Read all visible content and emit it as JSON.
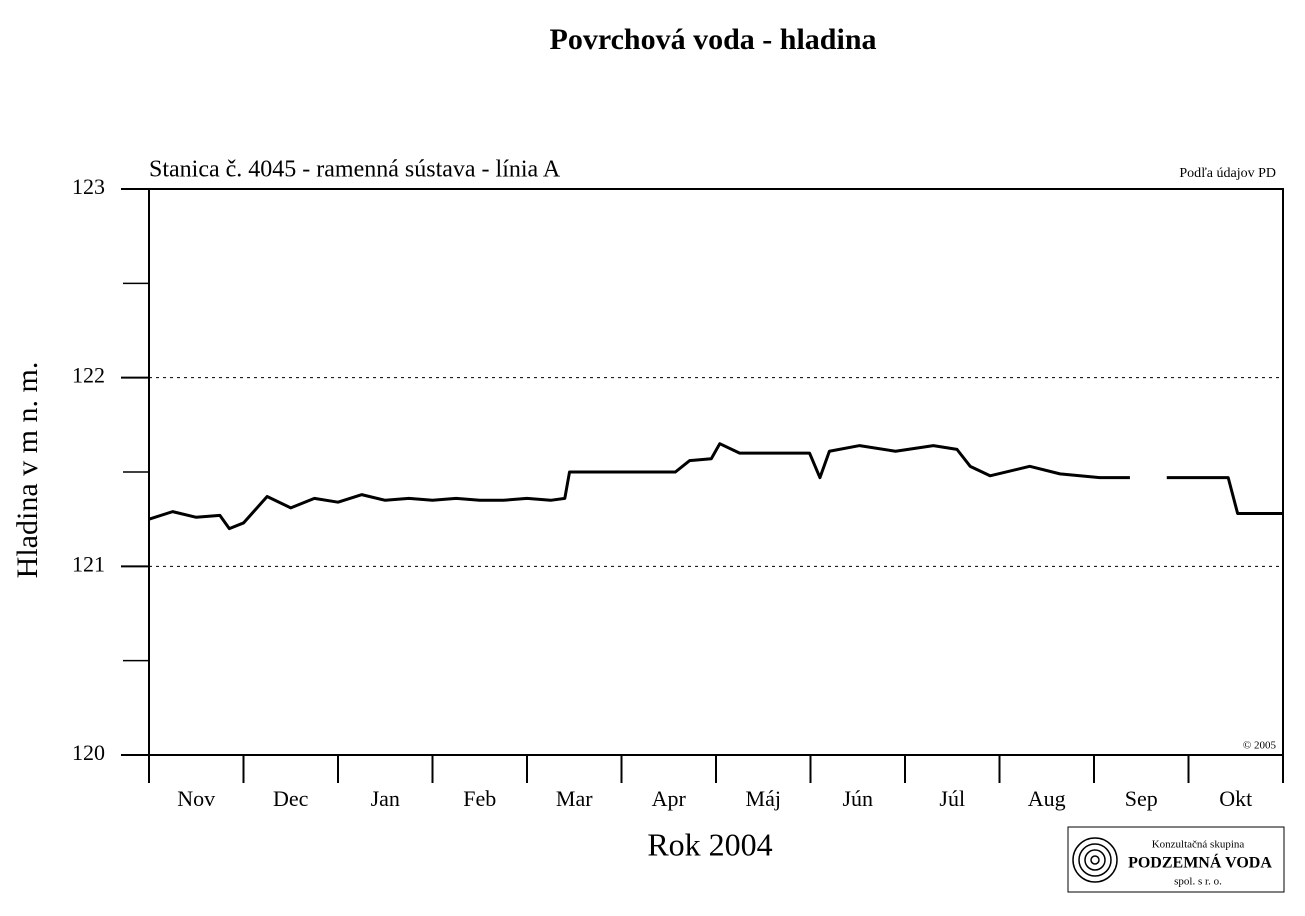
{
  "chart_data": {
    "type": "line",
    "title": "Povrchová voda - hladina",
    "subtitle": "Stanica č. 4045 - ramenná sústava - línia A",
    "source": "Podľa údajov PD",
    "copyright": "© 2005",
    "ylabel": "Hladina v m n. m.",
    "xlabel": "Rok 2004",
    "logo": [
      "Konzultačná skupina",
      "PODZEMNÁ VODA",
      "spol. s r. o."
    ],
    "categories": [
      "Nov",
      "Dec",
      "Jan",
      "Feb",
      "Mar",
      "Apr",
      "Máj",
      "Jún",
      "Júl",
      "Aug",
      "Sep",
      "Okt"
    ],
    "xlim": [
      0,
      12
    ],
    "xtick_marks": [
      0,
      1,
      2,
      3,
      4,
      5,
      6,
      7,
      8,
      9,
      10,
      11,
      12
    ],
    "ylim": [
      120,
      123
    ],
    "yticks": [
      120,
      121,
      122,
      123
    ],
    "yminor": [
      120.5,
      121.5,
      122.5
    ],
    "grid_lines": [
      121,
      122
    ],
    "series": [
      {
        "name": "Hladina",
        "color": "#000000",
        "x": [
          0,
          0.25,
          0.5,
          0.75,
          0.85,
          1.0,
          1.25,
          1.5,
          1.75,
          2.0,
          2.25,
          2.5,
          2.75,
          3.0,
          3.25,
          3.5,
          3.75,
          4.0,
          4.25,
          4.4,
          4.45,
          4.75,
          5.0,
          5.25,
          5.57,
          5.72,
          5.95,
          6.04,
          6.25,
          6.5,
          6.99,
          7.1,
          7.2,
          7.52,
          7.9,
          8.3,
          8.55,
          8.69,
          8.9,
          9.32,
          9.64,
          10.06,
          10.38,
          10.5,
          10.77,
          11.42,
          11.52,
          12
        ],
        "values": [
          121.25,
          121.29,
          121.26,
          121.27,
          121.2,
          121.23,
          121.37,
          121.31,
          121.36,
          121.34,
          121.38,
          121.35,
          121.36,
          121.35,
          121.36,
          121.35,
          121.35,
          121.36,
          121.35,
          121.36,
          121.5,
          121.5,
          121.5,
          121.5,
          121.5,
          121.56,
          121.57,
          121.65,
          121.6,
          121.6,
          121.6,
          121.47,
          121.61,
          121.64,
          121.61,
          121.64,
          121.62,
          121.53,
          121.48,
          121.53,
          121.49,
          121.47,
          121.47,
          null,
          121.47,
          121.47,
          121.28,
          121.28
        ]
      }
    ]
  }
}
